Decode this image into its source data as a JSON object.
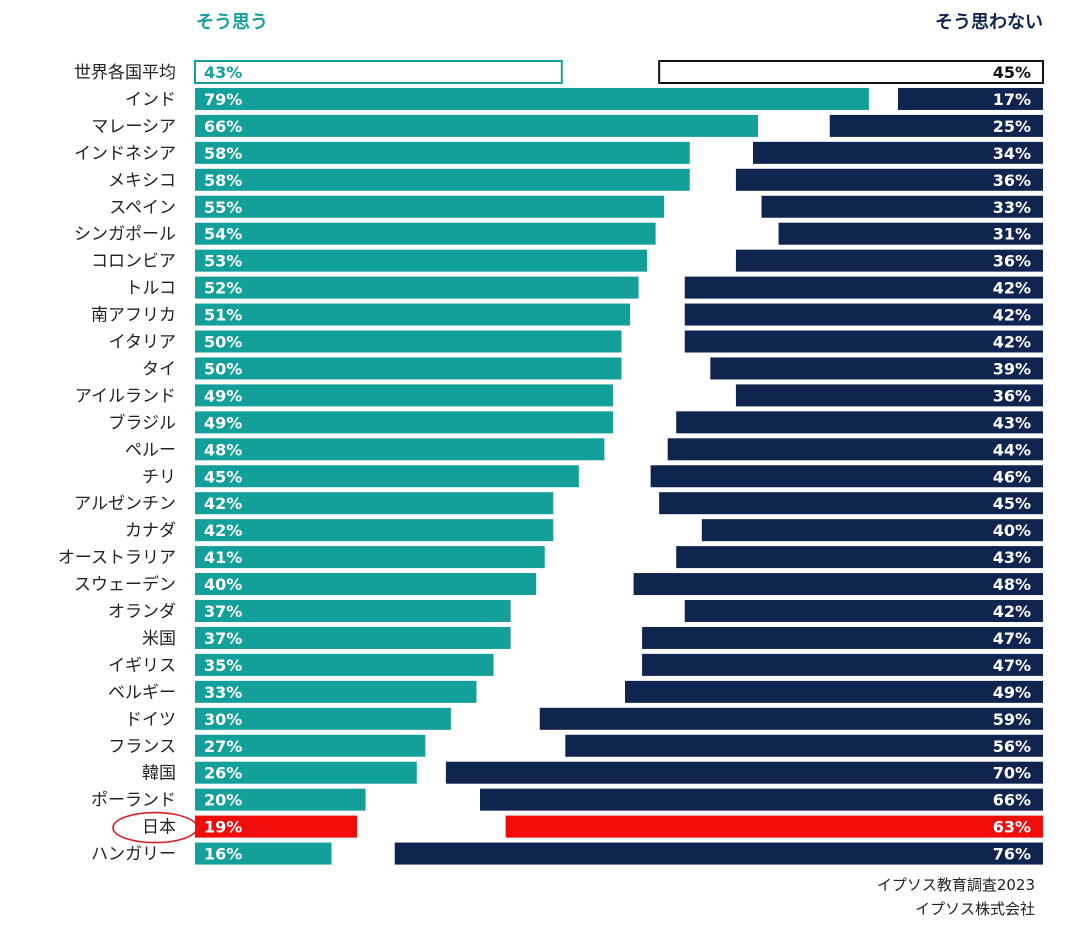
{
  "legend": {
    "agree": "そう思う",
    "disagree": "そう思わない"
  },
  "source": {
    "line1": "イプソス教育調査2023",
    "line2": "イプソス株式会社"
  },
  "colors": {
    "agree": "#13a09a",
    "disagree": "#0f2550",
    "highlight": "#f10b0b",
    "average_fill": "#ffffff",
    "circle": "#d91f26"
  },
  "chart_data": {
    "type": "bar",
    "orientation": "horizontal-diverging",
    "categories": [
      "世界各国平均",
      "インド",
      "マレーシア",
      "インドネシア",
      "メキシコ",
      "スペイン",
      "シンガポール",
      "コロンビア",
      "トルコ",
      "南アフリカ",
      "イタリア",
      "タイ",
      "アイルランド",
      "ブラジル",
      "ペルー",
      "チリ",
      "アルゼンチン",
      "カナダ",
      "オーストラリア",
      "スウェーデン",
      "オランダ",
      "米国",
      "イギリス",
      "ベルギー",
      "ドイツ",
      "フランス",
      "韓国",
      "ポーランド",
      "日本",
      "ハンガリー"
    ],
    "series": [
      {
        "name": "そう思う",
        "values": [
          43,
          79,
          66,
          58,
          58,
          55,
          54,
          53,
          52,
          51,
          50,
          50,
          49,
          49,
          48,
          45,
          42,
          42,
          41,
          40,
          37,
          37,
          35,
          33,
          30,
          27,
          26,
          20,
          19,
          16
        ]
      },
      {
        "name": "そう思わない",
        "values": [
          45,
          17,
          25,
          34,
          36,
          33,
          31,
          36,
          42,
          42,
          42,
          39,
          36,
          43,
          44,
          46,
          45,
          40,
          43,
          48,
          42,
          47,
          47,
          49,
          59,
          56,
          70,
          66,
          63,
          76
        ]
      }
    ],
    "value_labels": [
      [
        "43%",
        "79%",
        "66%",
        "58%",
        "58%",
        "55%",
        "54%",
        "53%",
        "52%",
        "51%",
        "50%",
        "50%",
        "49%",
        "49%",
        "48%",
        "45%",
        "42%",
        "42%",
        "41%",
        "40%",
        "37%",
        "37%",
        "35%",
        "33%",
        "30%",
        "27%",
        "26%",
        "20%",
        "19%",
        "16%"
      ],
      [
        "45%",
        "17%",
        "25%",
        "34%",
        "36%",
        "33%",
        "31%",
        "36%",
        "42%",
        "42%",
        "42%",
        "39%",
        "36%",
        "43%",
        "44%",
        "46%",
        "45%",
        "40%",
        "43%",
        "48%",
        "42%",
        "47%",
        "47%",
        "49%",
        "59%",
        "56%",
        "70%",
        "66%",
        "63%",
        "76%"
      ]
    ],
    "xlim": [
      0,
      100
    ],
    "average_category": "世界各国平均",
    "highlight_category": "日本",
    "grid": false
  }
}
